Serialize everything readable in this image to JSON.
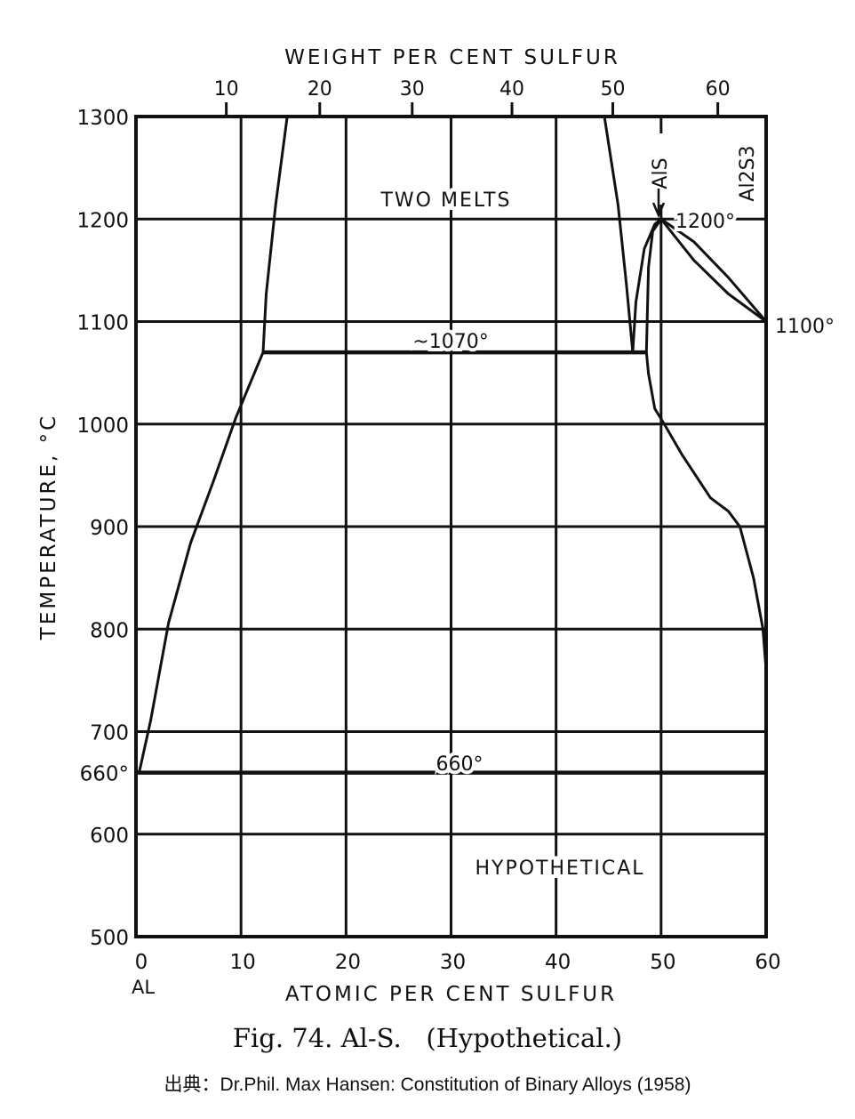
{
  "chart_data": {
    "type": "line",
    "title": "Fig. 74. Al-S.   (Hypothetical.)",
    "xlabel": "ATOMIC PER CENT SULFUR",
    "x2label": "WEIGHT PER CENT SULFUR",
    "ylabel": "TEMPERATURE, °C",
    "xlim": [
      0,
      60
    ],
    "ylim": [
      500,
      1300
    ],
    "grid": true,
    "x_ticks": [
      0,
      10,
      20,
      30,
      40,
      50,
      60
    ],
    "x_tick_labels": [
      "0",
      "10",
      "20",
      "30",
      "40",
      "50",
      "60"
    ],
    "x_zero_sublabel": "AL",
    "x2_ticks": [
      {
        "label": "10",
        "at_pct": 8.6
      },
      {
        "label": "20",
        "at_pct": 17.5
      },
      {
        "label": "30",
        "at_pct": 26.3
      },
      {
        "label": "40",
        "at_pct": 35.8
      },
      {
        "label": "50",
        "at_pct": 45.4
      },
      {
        "label": "60",
        "at_pct": 55.4
      }
    ],
    "y_ticks": [
      500,
      600,
      660,
      700,
      800,
      900,
      1000,
      1100,
      1200,
      1300
    ],
    "y_tick_labels": [
      "500",
      "600",
      "660°",
      "700",
      "800",
      "900",
      "1000",
      "1100",
      "1200",
      "1300"
    ],
    "series": [
      {
        "name": "liquidus-al-side",
        "points": [
          [
            0.3,
            660
          ],
          [
            1.4,
            711
          ],
          [
            3.1,
            806
          ],
          [
            5.2,
            884
          ],
          [
            7.4,
            945
          ],
          [
            9.5,
            1006
          ],
          [
            12.1,
            1070
          ]
        ]
      },
      {
        "name": "miscibility-gap-left",
        "points": [
          [
            12.1,
            1070
          ],
          [
            12.4,
            1127
          ],
          [
            13.3,
            1214
          ],
          [
            14.4,
            1300
          ]
        ]
      },
      {
        "name": "miscibility-gap-right",
        "points": [
          [
            44.6,
            1300
          ],
          [
            45.9,
            1214
          ],
          [
            46.7,
            1136
          ],
          [
            47.3,
            1070
          ]
        ]
      },
      {
        "name": "als-liquidus-left",
        "points": [
          [
            47.3,
            1070
          ],
          [
            47.6,
            1119
          ],
          [
            48.4,
            1171
          ],
          [
            49.4,
            1195
          ],
          [
            50,
            1200
          ]
        ]
      },
      {
        "name": "als-inner",
        "points": [
          [
            50,
            1200
          ],
          [
            49.2,
            1188
          ],
          [
            48.8,
            1153
          ],
          [
            48.6,
            1070
          ],
          [
            48.8,
            1049
          ],
          [
            49.4,
            1015
          ],
          [
            50.3,
            1000
          ],
          [
            52,
            970
          ],
          [
            54.7,
            928
          ],
          [
            56.4,
            915
          ],
          [
            57.5,
            900
          ],
          [
            58.8,
            850
          ],
          [
            59.7,
            800
          ],
          [
            60,
            760
          ]
        ]
      },
      {
        "name": "als-al2s3-upper",
        "points": [
          [
            50,
            1200
          ],
          [
            53.1,
            1178
          ],
          [
            56.4,
            1143
          ],
          [
            60,
            1100
          ]
        ]
      },
      {
        "name": "als-al2s3-lower",
        "points": [
          [
            50,
            1200
          ],
          [
            53.1,
            1160
          ],
          [
            56.4,
            1127
          ],
          [
            60,
            1100
          ]
        ]
      },
      {
        "name": "monotectic-1070",
        "points": [
          [
            12.1,
            1070
          ],
          [
            48.6,
            1070
          ]
        ]
      },
      {
        "name": "eutectic-660",
        "points": [
          [
            0,
            660
          ],
          [
            60,
            660
          ]
        ]
      },
      {
        "name": "al2s3-line",
        "points": [
          [
            60,
            760
          ],
          [
            60,
            660
          ]
        ]
      }
    ],
    "annotations": [
      {
        "text": "TWO MELTS",
        "at": [
          30,
          1220
        ]
      },
      {
        "text": "~1070°",
        "at": [
          30,
          1078
        ]
      },
      {
        "text": "660°",
        "at": [
          30,
          668
        ]
      },
      {
        "text": "HYPOTHETICAL",
        "at": [
          40,
          572
        ]
      },
      {
        "text": "1200°",
        "at": [
          55,
          1200
        ]
      },
      {
        "text": "1100°",
        "at": [
          60,
          1100
        ]
      },
      {
        "text": "AlS",
        "at": [
          50,
          1250
        ]
      },
      {
        "text": "Al2S3",
        "at": [
          58,
          1260
        ]
      }
    ]
  },
  "source": "出典：Dr.Phil. Max Hansen: Constitution of Binary Alloys (1958)"
}
